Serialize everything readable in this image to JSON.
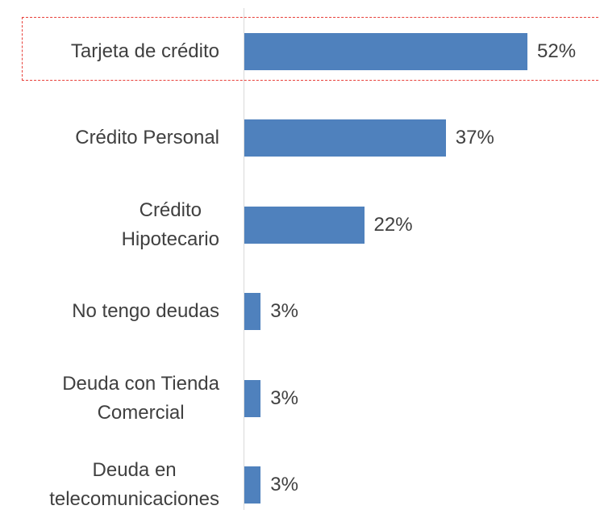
{
  "chart_data": {
    "type": "bar",
    "orientation": "horizontal",
    "categories": [
      "Tarjeta de crédito",
      "Crédito Personal",
      "Crédito \nHipotecario",
      "No tengo deudas",
      "Deuda con Tienda\nComercial",
      "Deuda en\ntelecomunicaciones"
    ],
    "values": [
      52,
      37,
      22,
      3,
      3,
      3
    ],
    "value_labels": [
      "52%",
      "37%",
      "22%",
      "3%",
      "3%",
      "3%"
    ],
    "color": "#4f81bd"
  }
}
